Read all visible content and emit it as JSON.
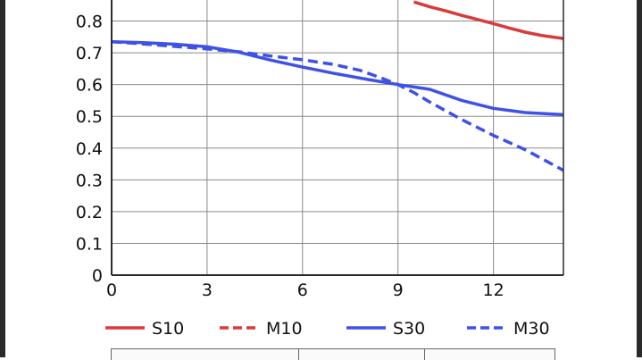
{
  "chart_data": {
    "type": "line",
    "title": "",
    "xlabel": "",
    "ylabel": "",
    "xlim": [
      0,
      14.2
    ],
    "ylim": [
      0,
      0.9
    ],
    "x_ticks": [
      "0",
      "3",
      "6",
      "9",
      "12"
    ],
    "y_ticks": [
      "0",
      "0.1",
      "0.2",
      "0.3",
      "0.4",
      "0.5",
      "0.6",
      "0.7",
      "0.8"
    ],
    "grid": true,
    "legend_position": "bottom",
    "series": [
      {
        "name": "S10",
        "color": "#d93a3a",
        "style": "solid",
        "x": [
          9.5,
          10.0,
          10.5,
          11.0,
          11.5,
          12.0,
          12.5,
          13.0,
          13.5,
          14.2
        ],
        "y": [
          0.86,
          0.845,
          0.832,
          0.818,
          0.805,
          0.792,
          0.778,
          0.765,
          0.755,
          0.745
        ]
      },
      {
        "name": "M10",
        "color": "#d93a3a",
        "style": "dashed",
        "x": [],
        "y": []
      },
      {
        "name": "S30",
        "color": "#3f51e6",
        "style": "solid",
        "x": [
          0,
          1,
          2,
          3,
          4,
          5,
          6,
          7,
          8,
          9,
          10,
          11,
          12,
          13,
          14.2
        ],
        "y": [
          0.735,
          0.732,
          0.727,
          0.719,
          0.702,
          0.677,
          0.655,
          0.635,
          0.617,
          0.6,
          0.585,
          0.55,
          0.525,
          0.512,
          0.505
        ]
      },
      {
        "name": "M30",
        "color": "#3f51e6",
        "style": "dashed",
        "x": [
          0,
          1,
          2,
          3,
          4,
          5,
          6,
          7,
          7.8,
          8.5,
          9,
          9.5,
          10,
          11,
          12,
          13,
          14.2
        ],
        "y": [
          0.735,
          0.728,
          0.72,
          0.712,
          0.703,
          0.69,
          0.678,
          0.663,
          0.645,
          0.62,
          0.6,
          0.575,
          0.545,
          0.49,
          0.44,
          0.395,
          0.33
        ]
      }
    ]
  }
}
